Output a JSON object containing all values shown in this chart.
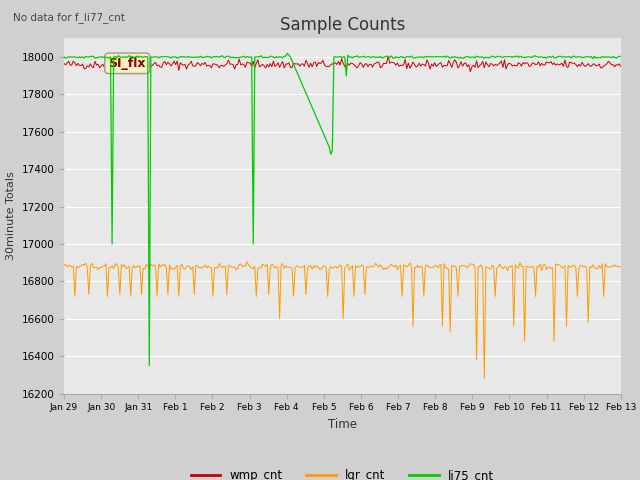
{
  "title": "Sample Counts",
  "xlabel": "Time",
  "ylabel": "30minute Totals",
  "top_left_text": "No data for f_li77_cnt",
  "annotation_text": "SI_flx",
  "ylim": [
    16200,
    18100
  ],
  "background_color": "#e8e8e8",
  "fig_background": "#d0d0d0",
  "grid_color": "#ffffff",
  "wmp_cnt_color": "#cc0000",
  "lgr_cnt_color": "#ff9900",
  "li75_cnt_color": "#00cc00",
  "x_tick_labels": [
    "Jan 29",
    "Jan 30",
    "Jan 31",
    "Feb 1",
    "Feb 2",
    "Feb 3",
    "Feb 4",
    "Feb 5",
    "Feb 6",
    "Feb 7",
    "Feb 8",
    "Feb 9",
    "Feb 10",
    "Feb 11",
    "Feb 12",
    "Feb 13"
  ],
  "wmp_base": 17960,
  "wmp_noise": 12,
  "lgr_base": 16880,
  "lgr_noise": 8,
  "li75_base": 18000,
  "seed": 42,
  "n_points_per_day": 24,
  "n_days": 15
}
